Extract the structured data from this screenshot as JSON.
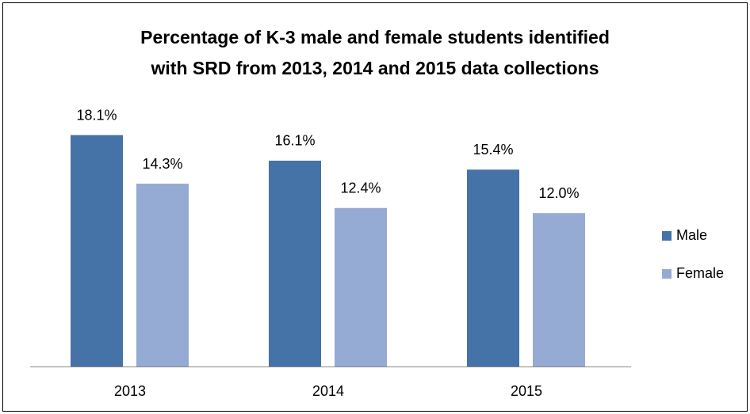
{
  "chart_data": {
    "type": "bar",
    "title": [
      "Percentage of K-3  male and female students identified",
      "with SRD from 2013, 2014 and 2015 data collections"
    ],
    "categories": [
      "2013",
      "2014",
      "2015"
    ],
    "series": [
      {
        "name": "Male",
        "color": "#4572a7",
        "values": [
          18.1,
          16.1,
          15.4
        ],
        "value_labels": [
          "18.1%",
          "16.1%",
          "15.4%"
        ]
      },
      {
        "name": "Female",
        "color": "#95abd3",
        "values": [
          14.3,
          12.4,
          12.0
        ],
        "value_labels": [
          "14.3%",
          "12.4%",
          "12.0%"
        ]
      }
    ],
    "ylim": [
      0,
      20
    ],
    "legend": "right"
  }
}
